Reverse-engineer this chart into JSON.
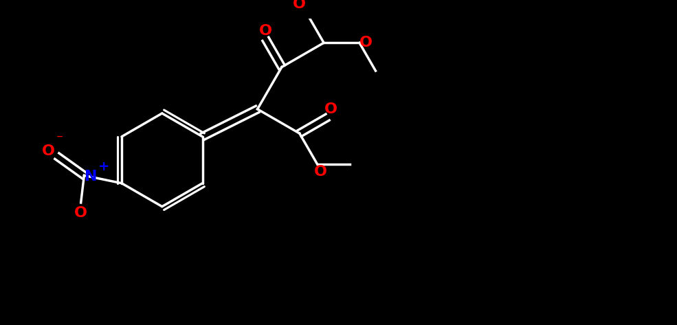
{
  "bg_color": "#000000",
  "bond_color": "#000000",
  "atom_colors": {
    "O": "#ff0000",
    "N": "#0000ff",
    "C": "#000000"
  },
  "figsize": [
    9.85,
    4.73
  ],
  "dpi": 100,
  "line_width": 2.5,
  "font_size": 14
}
